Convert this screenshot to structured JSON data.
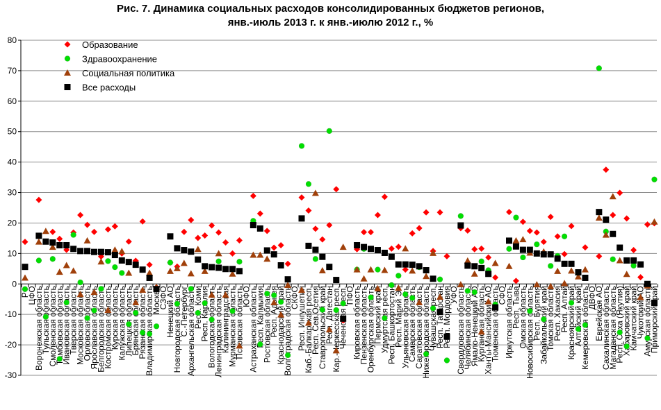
{
  "chart_data": {
    "type": "scatter",
    "title": [
      "Рис. 7. Динамика социальных расходов консолидированных бюджетов регионов,",
      "янв.-июль 2013 г. к янв.-июлю 2012 г., %"
    ],
    "xlabel": "",
    "ylabel": "",
    "ylim": [
      -30,
      80
    ],
    "yticks": [
      -30,
      -20,
      -10,
      0,
      10,
      20,
      30,
      40,
      50,
      60,
      70,
      80
    ],
    "grid": true,
    "legend_position": "top-left",
    "categories": [
      "РФ",
      "ЦФО",
      "Воронежская область",
      "Тульская область",
      "Смоленская область",
      "Тамбовская область",
      "Ивановская область",
      "Тверская область",
      "Московская область",
      "Орловская область",
      "Ярославская область",
      "Белгородская область",
      "Костромская область",
      "Курская область",
      "Калужская область",
      "Липецкая область",
      "Брянская область",
      "Рязанская область",
      "Владимирская область",
      "Москва",
      "СЗФО",
      "Ненецкий АО",
      "Новгородская область",
      "С.-Петербург",
      "Архангельская область",
      "Респ. Коми",
      "Респ. Карелия",
      "Вологодская область",
      "Ленинградская область",
      "Калининградская",
      "Мурманская область",
      "Псковская область",
      "ЮФО",
      "Астраханская область",
      "Респ. Калмыкия",
      "Ростовская область",
      "Респ. Адыгея",
      "Краснодарский край",
      "Волгоградская область",
      "СКФО",
      "Респ. Ингушетия",
      "Каб.-Балкарская респ.",
      "Респ. Сев.Осетия",
      "Ставропольский край",
      "Респ. Дагестан",
      "Кар.-Черкесская респ.",
      "Чеченская респ.",
      "ПФО",
      "Кировская область",
      "Пензенская область",
      "Оренбургская область",
      "Пермский край",
      "Удмуртская респ.",
      "Респ. Башкортостан",
      "Респ. Марий Эл",
      "Ульяновская область",
      "Самарская область",
      "Саратовская область",
      "Нижегородская область",
      "Чувашская респ.",
      "Респ. Татарстан",
      "Респ. Мордовия",
      "УФО",
      "Свердловская область",
      "Челябинская область",
      "Ямало-Ненецкий АО",
      "Курганская область",
      "Ханты-Мансийский АО",
      "Тюменская область",
      "СФО",
      "Иркутская область",
      "Респ. Тыва",
      "Омская область",
      "Новосибирская область",
      "Респ. Бурятия",
      "Забайкальский край",
      "Томская область",
      "Респ. Хакасия",
      "Респ. Алтай",
      "Красноярский край",
      "Алтайский край",
      "Кемеровская область",
      "ДВФО",
      "Еврейская АО",
      "Сахалинская область",
      "Магаданская область",
      "Респ. Саха (Якутия)",
      "Хабаровский край",
      "Камчатский край",
      "Чукотский АО",
      "Амурская область",
      "Приморский край"
    ],
    "series": [
      {
        "name": "Образование",
        "marker": "diamond",
        "color": "#ff0000",
        "values": [
          13.8,
          null,
          27.6,
          null,
          17.1,
          14.8,
          11.2,
          16.9,
          22.6,
          19.4,
          17.1,
          9.0,
          17.9,
          18.9,
          10.0,
          13.9,
          7.6,
          20.5,
          6.3,
          -1.1,
          null,
          7.0,
          5.7,
          17.1,
          21.0,
          15.1,
          15.9,
          19.2,
          16.9,
          13.6,
          10.0,
          14.3,
          null,
          28.9,
          23.1,
          17.4,
          11.9,
          12.7,
          6.6,
          null,
          28.4,
          24.1,
          18.1,
          14.6,
          19.3,
          31.1,
          -12.0,
          null,
          11.4,
          17.0,
          17.0,
          22.6,
          28.6,
          11.6,
          12.2,
          4.7,
          16.6,
          18.3,
          23.5,
          10.8,
          23.5,
          9.1,
          null,
          18.3,
          17.5,
          11.4,
          11.6,
          8.7,
          2.1,
          null,
          23.6,
          1.0,
          20.4,
          17.4,
          16.9,
          13.8,
          22.0,
          15.6,
          9.8,
          19.0,
          null,
          12.0,
          null,
          9.1,
          37.5,
          22.6,
          29.9,
          21.5,
          11.1,
          2.2,
          19.5,
          19.9
        ]
      },
      {
        "name": "Здравоохранение",
        "marker": "circle",
        "color": "#00e000",
        "values": [
          -1.7,
          null,
          7.7,
          -10.8,
          8.2,
          -24.6,
          -6.1,
          16.1,
          0.5,
          -11.2,
          -8.7,
          -1.6,
          7.5,
          5.5,
          3.6,
          -13.2,
          -9.5,
          -16.0,
          -16.4,
          -13.9,
          null,
          7.0,
          -6.5,
          null,
          -1.6,
          -9.5,
          -6.3,
          -11.7,
          7.4,
          null,
          -8.9,
          7.3,
          null,
          20.7,
          -19.8,
          -3.2,
          -3.7,
          -5.9,
          -23.4,
          null,
          45.3,
          32.8,
          8.2,
          -8.5,
          50.2,
          -8.6,
          -6.4,
          null,
          4.7,
          11.5,
          -4.4,
          4.7,
          -11.2,
          -0.4,
          2.7,
          -3.4,
          -4.6,
          5.5,
          -23.0,
          -8.0,
          1.5,
          -25.1,
          null,
          22.3,
          -2.3,
          -2.7,
          7.4,
          4.5,
          -6.7,
          null,
          11.5,
          21.8,
          8.7,
          -8.9,
          13.0,
          -11.6,
          5.9,
          9.2,
          15.6,
          -6.2,
          -14.8,
          -13.5,
          null,
          70.8,
          17.2,
          8.1,
          -15.9,
          -20.5,
          6.0,
          null,
          -17.8,
          34.3
        ]
      },
      {
        "name": "Социальная политика",
        "marker": "triangle",
        "color": "#a0400a",
        "values": [
          2.0,
          null,
          13.8,
          17.3,
          12.1,
          3.9,
          6.1,
          4.3,
          -3.4,
          14.2,
          -2.7,
          7.3,
          -8.6,
          11.2,
          10.7,
          3.6,
          -6.1,
          -2.0,
          3.6,
          -1.0,
          null,
          4.2,
          5.1,
          6.8,
          3.4,
          11.4,
          4.2,
          -3.6,
          10.0,
          -3.6,
          3.3,
          -20.3,
          null,
          9.5,
          9.5,
          8.2,
          -6.1,
          -10.1,
          -0.4,
          null,
          -2.0,
          -12.8,
          29.8,
          4.4,
          -15.0,
          -21.9,
          12.1,
          null,
          4.7,
          1.7,
          4.7,
          -1.5,
          4.5,
          null,
          -1.3,
          11.6,
          4.3,
          -6.1,
          2.5,
          10.1,
          -4.3,
          null,
          null,
          -0.2,
          7.6,
          3.3,
          -15.7,
          -5.8,
          6.8,
          null,
          5.8,
          14.2,
          14.6,
          10.2,
          -0.2,
          10.6,
          -0.8,
          4.2,
          0.2,
          4.3,
          2.4,
          4.7,
          null,
          21.7,
          16.1,
          28.7,
          7.7,
          3.2,
          null,
          -4.4,
          -0.6,
          20.4
        ]
      },
      {
        "name": "Все расходы",
        "marker": "square",
        "color": "#000000",
        "values": [
          5.6,
          null,
          15.8,
          13.9,
          13.6,
          12.7,
          12.7,
          11.5,
          10.8,
          10.8,
          10.5,
          10.5,
          10.4,
          9.5,
          7.7,
          7.2,
          6.3,
          4.7,
          2.0,
          -1.7,
          null,
          15.6,
          11.7,
          11.1,
          10.6,
          8.0,
          5.8,
          5.5,
          5.3,
          4.9,
          4.9,
          4.2,
          null,
          19.3,
          18.2,
          11.0,
          9.7,
          6.1,
          1.5,
          null,
          21.5,
          12.5,
          11.2,
          8.9,
          5.6,
          1.3,
          -11.4,
          null,
          12.7,
          12.1,
          11.5,
          11.1,
          10.2,
          8.9,
          6.4,
          6.4,
          6.3,
          5.8,
          4.5,
          1.7,
          -9.2,
          -17.3,
          null,
          19.2,
          6.0,
          5.8,
          5.2,
          3.3,
          -7.7,
          null,
          14.2,
          12.3,
          11.2,
          11.2,
          10.0,
          9.7,
          9.7,
          8.3,
          6.6,
          6.6,
          3.8,
          2.0,
          null,
          23.6,
          21.1,
          16.4,
          11.9,
          7.7,
          7.7,
          6.4,
          0.0,
          -6.2
        ]
      }
    ]
  }
}
